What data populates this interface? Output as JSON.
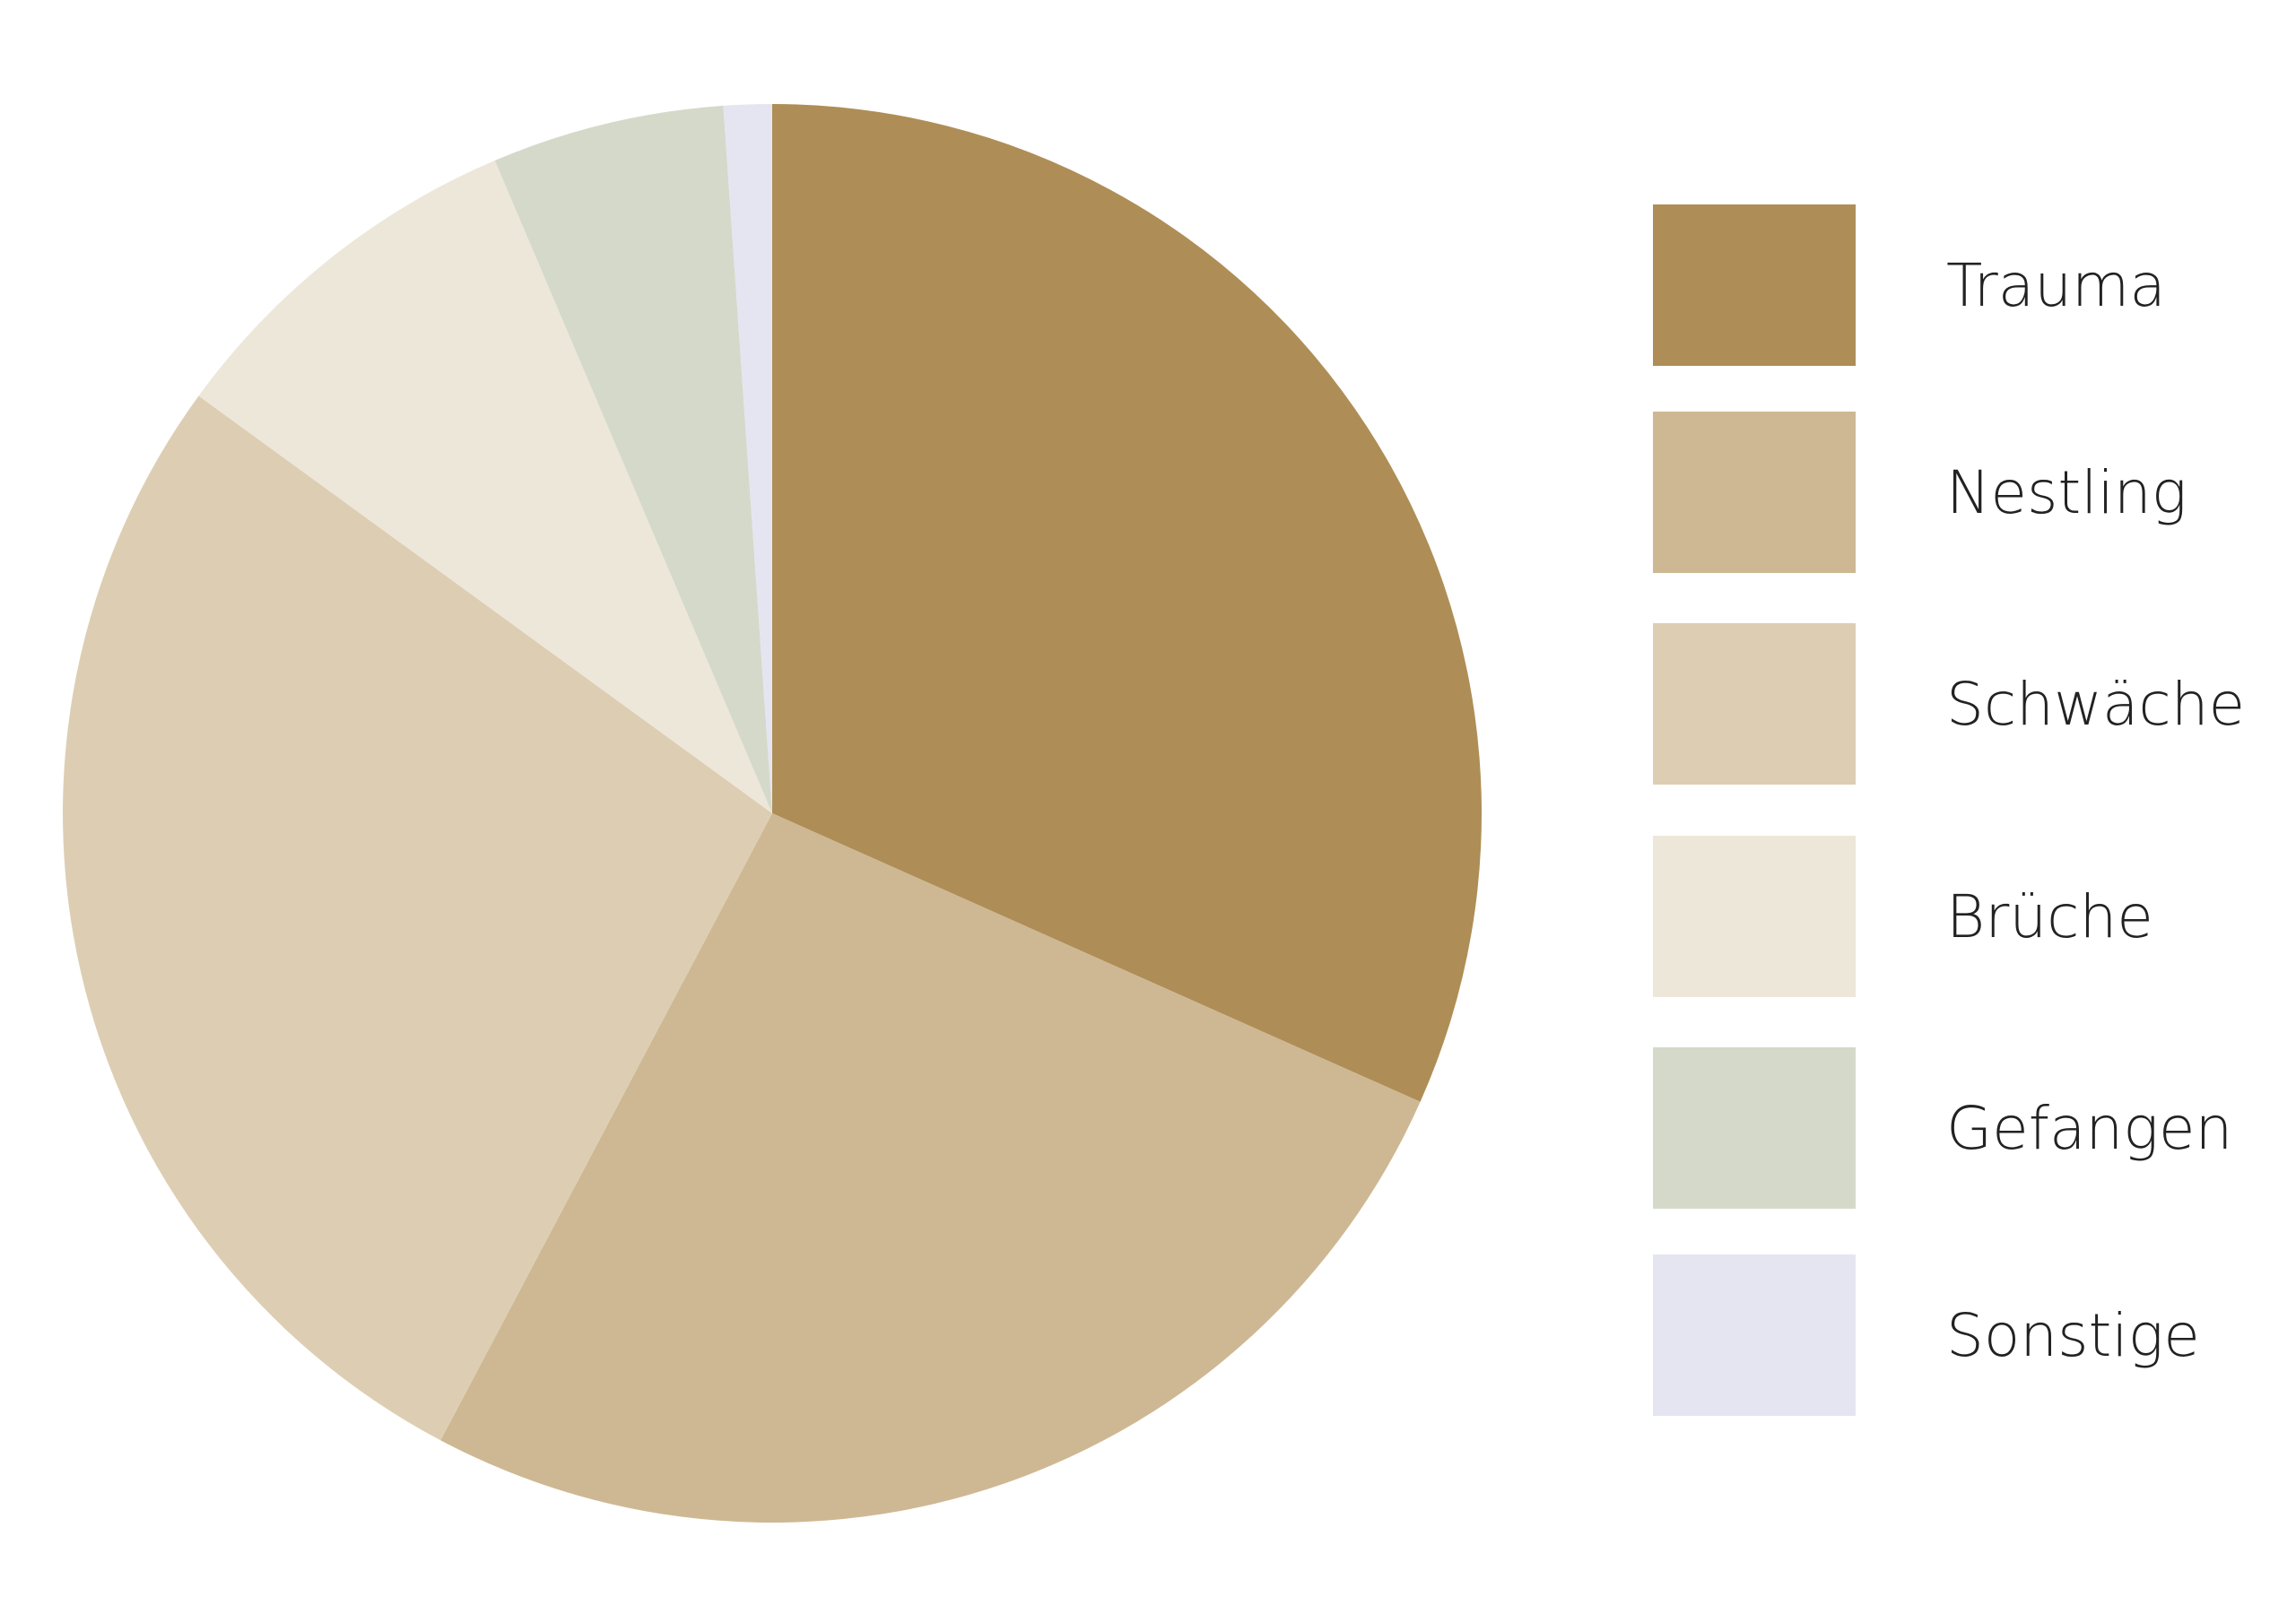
{
  "chart_data": {
    "type": "pie",
    "start": "top",
    "direction": "clockwise",
    "legend_position": "right",
    "categories": [
      "Trauma",
      "Nestling",
      "Schwäche",
      "Brüche",
      "Gefangen",
      "Sonstige"
    ],
    "values": [
      31.7,
      26.1,
      27.3,
      8.6,
      5.3,
      1.1
    ],
    "colors": [
      "#AE8E56",
      "#CEB893",
      "#DDCEB3",
      "#EDE7DA",
      "#D5D9CA",
      "#E5E5F1"
    ]
  }
}
